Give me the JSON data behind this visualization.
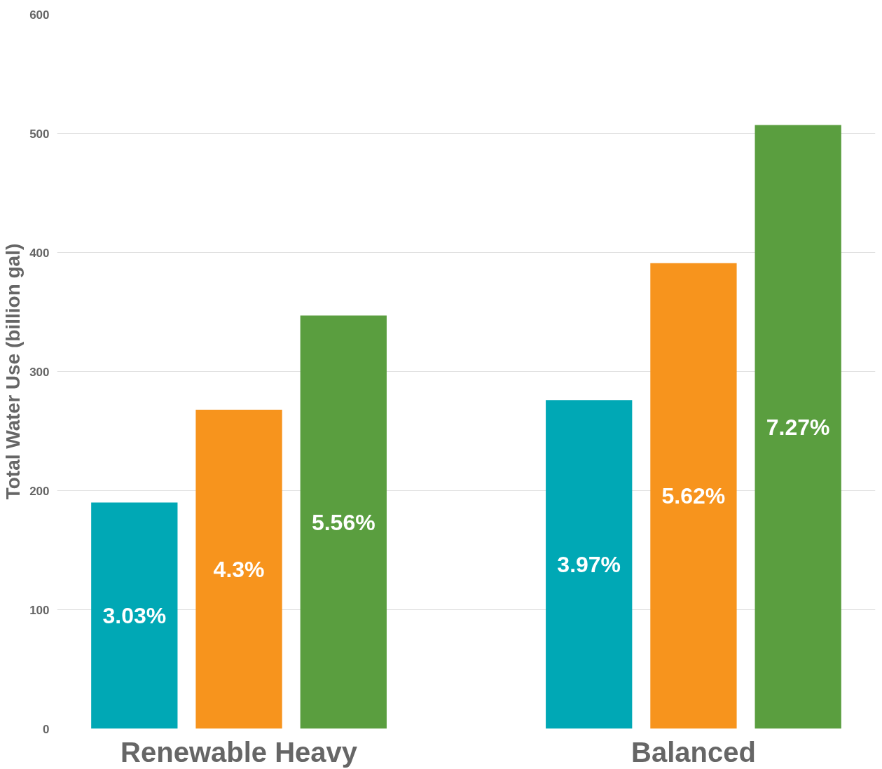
{
  "chart_data": {
    "type": "bar",
    "ylabel": "Total Water Use (billion gal)",
    "categories": [
      "Renewable Heavy",
      "Balanced"
    ],
    "series": [
      {
        "color": "#00a8b5",
        "values": [
          190,
          276
        ]
      },
      {
        "color": "#f7941d",
        "values": [
          268,
          391
        ]
      },
      {
        "color": "#5a9e3f",
        "values": [
          347,
          507
        ]
      }
    ],
    "annotations": [
      "3.03%",
      "4.3%",
      "5.56%",
      "3.97%",
      "5.62%",
      "7.27%"
    ],
    "ylim": [
      0,
      600
    ],
    "yticks": [
      0,
      100,
      200,
      300,
      400,
      500,
      600
    ],
    "grid": "y"
  }
}
